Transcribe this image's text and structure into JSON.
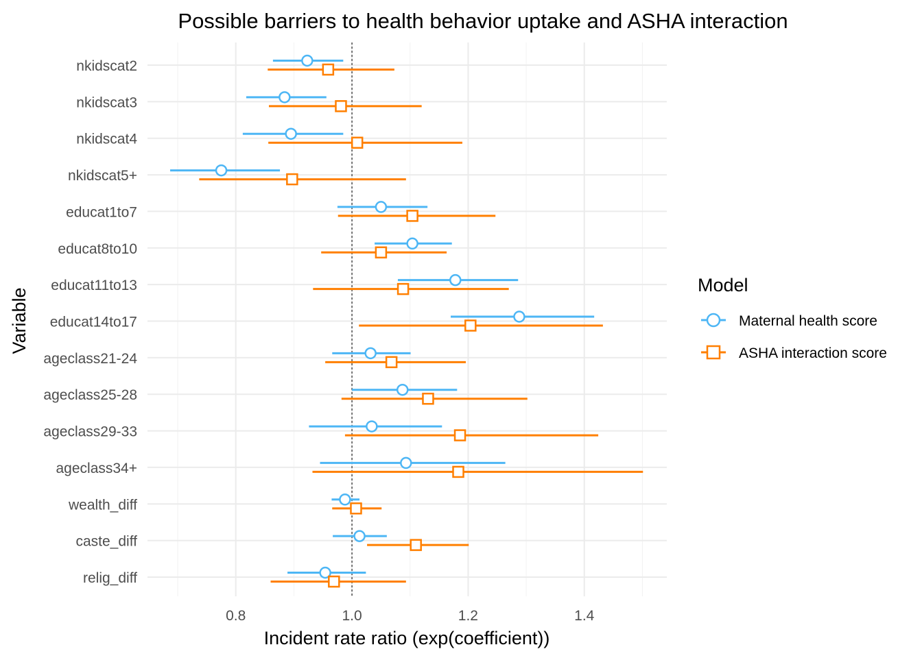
{
  "chart_data": {
    "type": "forest",
    "title": "Possible barriers to health behavior uptake and ASHA interaction",
    "xlabel": "Incident rate ratio (exp(coefficient))",
    "ylabel": "Variable",
    "xlim": [
      0.648,
      1.542
    ],
    "x_ticks": [
      0.8,
      1.0,
      1.2,
      1.4
    ],
    "x_tick_labels": [
      "0.8",
      "1.0",
      "1.2",
      "1.4"
    ],
    "reference_line": 1.0,
    "grid": true,
    "legend": {
      "title": "Model",
      "placement": "right"
    },
    "categories": [
      "nkidscat2",
      "nkidscat3",
      "nkidscat4",
      "nkidscat5+",
      "educat1to7",
      "educat8to10",
      "educat11to13",
      "educat14to17",
      "ageclass21-24",
      "ageclass25-28",
      "ageclass29-33",
      "ageclass34+",
      "wealth_diff",
      "caste_diff",
      "relig_diff"
    ],
    "series": [
      {
        "name": "Maternal health score",
        "color": "#4db6f5",
        "marker": "circle",
        "estimate": [
          0.923,
          0.884,
          0.895,
          0.775,
          1.05,
          1.104,
          1.178,
          1.288,
          1.032,
          1.087,
          1.034,
          1.093,
          0.988,
          1.013,
          0.954
        ],
        "lower": [
          0.864,
          0.818,
          0.812,
          0.687,
          0.975,
          1.039,
          1.079,
          1.17,
          0.966,
          1.0,
          0.926,
          0.945,
          0.965,
          0.967,
          0.889
        ],
        "upper": [
          0.985,
          0.956,
          0.985,
          0.876,
          1.13,
          1.172,
          1.286,
          1.417,
          1.101,
          1.181,
          1.155,
          1.264,
          1.013,
          1.06,
          1.024
        ]
      },
      {
        "name": "ASHA interaction score",
        "color": "#ff7f00",
        "marker": "square",
        "estimate": [
          0.959,
          0.981,
          1.009,
          0.897,
          1.104,
          1.05,
          1.088,
          1.204,
          1.068,
          1.131,
          1.186,
          1.183,
          1.007,
          1.11,
          0.969
        ],
        "lower": [
          0.855,
          0.857,
          0.856,
          0.737,
          0.976,
          0.947,
          0.933,
          1.012,
          0.954,
          0.982,
          0.988,
          0.932,
          0.966,
          1.026,
          0.86
        ],
        "upper": [
          1.073,
          1.12,
          1.19,
          1.093,
          1.247,
          1.163,
          1.27,
          1.432,
          1.196,
          1.302,
          1.424,
          1.501,
          1.051,
          1.201,
          1.093
        ]
      }
    ]
  }
}
